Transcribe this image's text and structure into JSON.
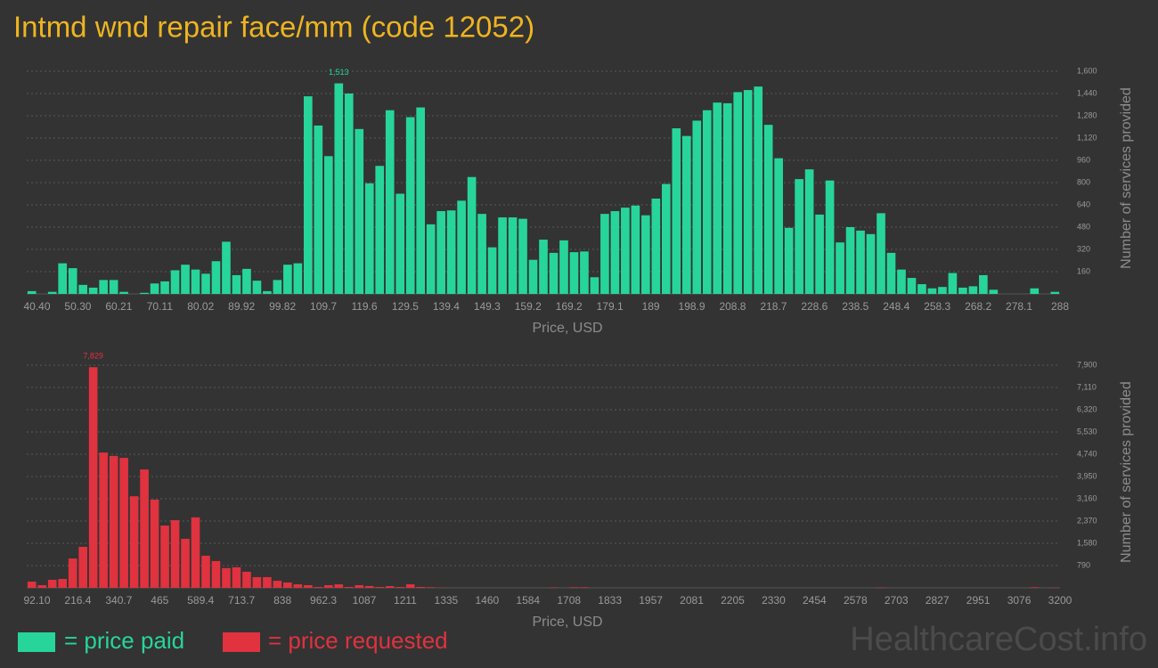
{
  "title": "Intmd wnd repair face/mm (code 12052)",
  "watermark": "HealthcareCost.info",
  "chart_data": [
    {
      "type": "bar",
      "xlabel": "Price, USD",
      "ylabel": "Number of services provided",
      "grid": true,
      "ylim": [
        0,
        1600
      ],
      "yticks": [
        160,
        320,
        480,
        640,
        800,
        960,
        {
          "value": 1120,
          "label": "1,120"
        },
        {
          "value": 1280,
          "label": "1,280"
        },
        {
          "value": 1440,
          "label": "1,440"
        },
        {
          "value": 1600,
          "label": "1,600"
        }
      ],
      "categories": [
        "40.40",
        null,
        null,
        null,
        "50.30",
        null,
        null,
        null,
        "60.21",
        null,
        null,
        null,
        "70.11",
        null,
        null,
        null,
        "80.02",
        null,
        null,
        null,
        "89.92",
        null,
        null,
        null,
        "99.82",
        null,
        null,
        null,
        "109.7",
        null,
        null,
        null,
        "119.6",
        null,
        null,
        null,
        "129.5",
        null,
        null,
        null,
        "139.4",
        null,
        null,
        null,
        "149.3",
        null,
        null,
        null,
        "159.2",
        null,
        null,
        null,
        "169.2",
        null,
        null,
        null,
        "179.1",
        null,
        null,
        null,
        "189",
        null,
        null,
        null,
        "198.9",
        null,
        null,
        null,
        "208.8",
        null,
        null,
        null,
        "218.7",
        null,
        null,
        null,
        "228.6",
        null,
        null,
        null,
        "238.5",
        null,
        null,
        null,
        "248.4",
        null,
        null,
        null,
        "258.3",
        null,
        null,
        null,
        "268.2",
        null,
        null,
        null,
        "278.1",
        null,
        null,
        null,
        "288"
      ],
      "series": [
        {
          "name": "= price paid",
          "color": "#27d59a",
          "values": [
            20,
            0,
            15,
            220,
            185,
            65,
            45,
            100,
            100,
            15,
            0,
            8,
            75,
            90,
            170,
            210,
            175,
            145,
            235,
            375,
            135,
            180,
            95,
            20,
            100,
            210,
            220,
            1420,
            1210,
            990,
            1513,
            1440,
            1185,
            795,
            920,
            1320,
            720,
            1270,
            1340,
            500,
            595,
            600,
            670,
            840,
            575,
            335,
            550,
            550,
            540,
            245,
            390,
            295,
            385,
            300,
            305,
            120,
            575,
            595,
            620,
            635,
            565,
            685,
            790,
            1190,
            1135,
            1245,
            1320,
            1375,
            1370,
            1450,
            1465,
            1490,
            1215,
            975,
            475,
            825,
            895,
            570,
            815,
            370,
            480,
            455,
            430,
            580,
            295,
            175,
            115,
            70,
            40,
            50,
            150,
            45,
            55,
            135,
            30,
            0,
            0,
            0,
            40,
            0,
            15
          ],
          "value_labels": [
            null,
            null,
            null,
            null,
            null,
            null,
            null,
            null,
            null,
            null,
            null,
            null,
            null,
            null,
            null,
            null,
            null,
            null,
            null,
            null,
            null,
            null,
            null,
            null,
            null,
            null,
            null,
            null,
            null,
            null,
            "1,513",
            null,
            null,
            null,
            null,
            null,
            null,
            null,
            null,
            null,
            null,
            null,
            null,
            null,
            null,
            null,
            null,
            null,
            null,
            null,
            null,
            null,
            null,
            null,
            null,
            null,
            null,
            null,
            null,
            null,
            null,
            null,
            null,
            null,
            null,
            null,
            null,
            null,
            null,
            null,
            null,
            null,
            null,
            null,
            null,
            null,
            null,
            null,
            null,
            null,
            null,
            null,
            null,
            null,
            null,
            null,
            null,
            null,
            null,
            null,
            null,
            null,
            null,
            null,
            null,
            null,
            null,
            null,
            null,
            null,
            null
          ]
        }
      ]
    },
    {
      "type": "bar",
      "xlabel": "Price, USD",
      "ylabel": "Number of services provided",
      "grid": true,
      "ylim": [
        0,
        7900
      ],
      "yticks": [
        790,
        {
          "value": 1580,
          "label": "1,580"
        },
        {
          "value": 2370,
          "label": "2,370"
        },
        {
          "value": 3160,
          "label": "3,160"
        },
        {
          "value": 3950,
          "label": "3,950"
        },
        {
          "value": 4740,
          "label": "4,740"
        },
        {
          "value": 5530,
          "label": "5,530"
        },
        {
          "value": 6320,
          "label": "6,320"
        },
        {
          "value": 7110,
          "label": "7,110"
        },
        {
          "value": 7900,
          "label": "7,900"
        }
      ],
      "categories": [
        "92.10",
        null,
        null,
        null,
        "216.4",
        null,
        null,
        null,
        "340.7",
        null,
        null,
        null,
        "465",
        null,
        null,
        null,
        "589.4",
        null,
        null,
        null,
        "713.7",
        null,
        null,
        null,
        "838",
        null,
        null,
        null,
        "962.3",
        null,
        null,
        null,
        "1087",
        null,
        null,
        null,
        "1211",
        null,
        null,
        null,
        "1335",
        null,
        null,
        null,
        "1460",
        null,
        null,
        null,
        "1584",
        null,
        null,
        null,
        "1708",
        null,
        null,
        null,
        "1833",
        null,
        null,
        null,
        "1957",
        null,
        null,
        null,
        "2081",
        null,
        null,
        null,
        "2205",
        null,
        null,
        null,
        "2330",
        null,
        null,
        null,
        "2454",
        null,
        null,
        null,
        "2578",
        null,
        null,
        null,
        "2703",
        null,
        null,
        null,
        "2827",
        null,
        null,
        null,
        "2951",
        null,
        null,
        null,
        "3076",
        null,
        null,
        null,
        "3200"
      ],
      "series": [
        {
          "name": "= price requested",
          "color": "#e0323f",
          "values": [
            220,
            95,
            285,
            315,
            1040,
            1455,
            7829,
            4800,
            4680,
            4610,
            3250,
            4200,
            3130,
            2210,
            2400,
            1740,
            2500,
            1140,
            950,
            700,
            730,
            570,
            380,
            380,
            250,
            190,
            125,
            95,
            30,
            95,
            125,
            30,
            95,
            65,
            30,
            60,
            30,
            125,
            30,
            20,
            10,
            0,
            0,
            0,
            0,
            0,
            0,
            0,
            0,
            0,
            0,
            15,
            0,
            20,
            20,
            0,
            0,
            0,
            0,
            0,
            0,
            0,
            0,
            0,
            0,
            0,
            0,
            0,
            0,
            0,
            0,
            0,
            0,
            0,
            0,
            0,
            0,
            0,
            0,
            0,
            0,
            0,
            0,
            15,
            0,
            0,
            0,
            0,
            0,
            0,
            0,
            0,
            0,
            0,
            0,
            0,
            0,
            0,
            20,
            0,
            10
          ],
          "value_labels": [
            null,
            null,
            null,
            null,
            null,
            null,
            "7,829",
            null,
            null,
            null,
            null,
            null,
            null,
            null,
            null,
            null,
            null,
            null,
            null,
            null,
            null,
            null,
            null,
            null,
            null,
            null,
            null,
            null,
            null,
            null,
            null,
            null,
            null,
            null,
            null,
            null,
            null,
            null,
            null,
            null,
            null,
            null,
            null,
            null,
            null,
            null,
            null,
            null,
            null,
            null,
            null,
            null,
            null,
            null,
            null,
            null,
            null,
            null,
            null,
            null,
            null,
            null,
            null,
            null,
            null,
            null,
            null,
            null,
            null,
            null,
            null,
            null,
            null,
            null,
            null,
            null,
            null,
            null,
            null,
            null,
            null,
            null,
            null,
            null,
            null,
            null,
            null,
            null,
            null,
            null,
            null,
            null,
            null,
            null,
            null,
            null,
            null,
            null,
            null,
            null,
            null
          ]
        }
      ]
    }
  ]
}
